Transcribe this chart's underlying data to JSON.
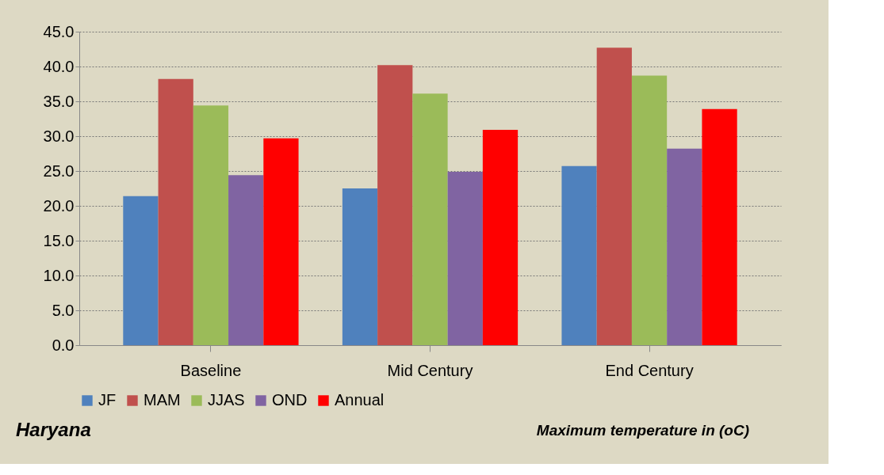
{
  "chart_data": {
    "type": "bar",
    "categories": [
      "Baseline",
      "Mid Century",
      "End Century"
    ],
    "series": [
      {
        "name": "JF",
        "color": "#4f81bd",
        "values": [
          21.4,
          22.5,
          25.7
        ]
      },
      {
        "name": "MAM",
        "color": "#c0504d",
        "values": [
          38.2,
          40.2,
          42.7
        ]
      },
      {
        "name": "JJAS",
        "color": "#9bbb59",
        "values": [
          34.4,
          36.1,
          38.7
        ]
      },
      {
        "name": "OND",
        "color": "#8064a2",
        "values": [
          24.4,
          24.9,
          28.2
        ]
      },
      {
        "name": "Annual",
        "color": "#ff0000",
        "values": [
          29.7,
          30.9,
          33.9
        ]
      }
    ],
    "ylim": [
      0,
      45
    ],
    "yticks": [
      {
        "value": 0,
        "label": "0.0"
      },
      {
        "value": 5,
        "label": "5.0"
      },
      {
        "value": 10,
        "label": "10.0"
      },
      {
        "value": 15,
        "label": "15.0"
      },
      {
        "value": 20,
        "label": "20.0"
      },
      {
        "value": 25,
        "label": "25.0"
      },
      {
        "value": 30,
        "label": "30.0"
      },
      {
        "value": 35,
        "label": "35.0"
      },
      {
        "value": 40,
        "label": "40.0"
      },
      {
        "value": 45,
        "label": "45.0"
      }
    ],
    "grid": "y",
    "legend": "bottom",
    "annotations": [
      "Haryana",
      "Maximum temperature in (oC)"
    ]
  }
}
